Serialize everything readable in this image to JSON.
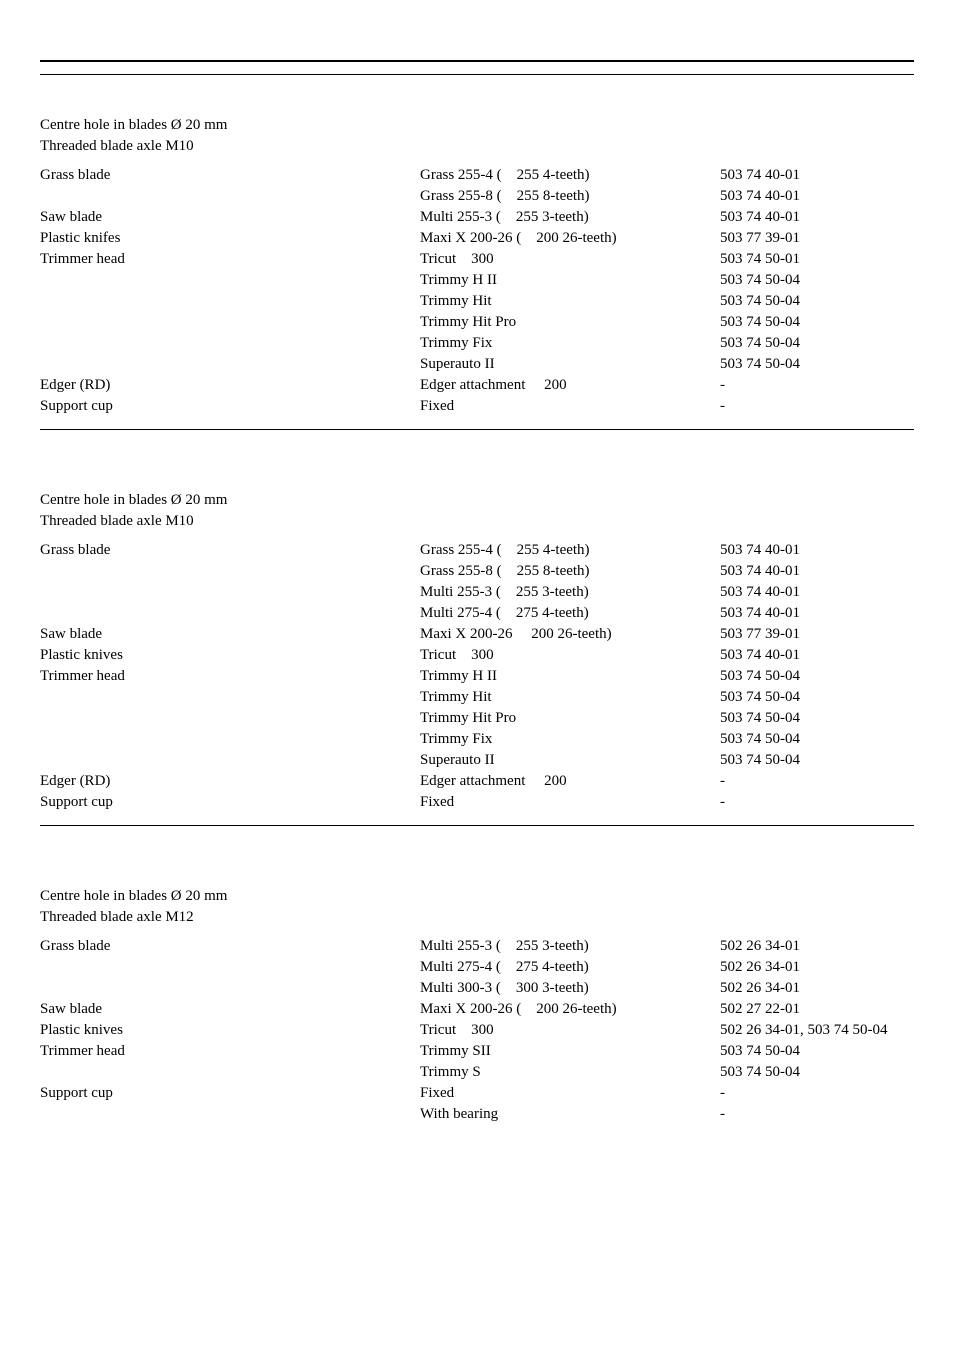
{
  "sections": [
    {
      "specs": [
        "Centre hole in blades Ø 20 mm",
        "Threaded blade axle M10"
      ],
      "rows": [
        {
          "left": "Grass blade",
          "mid": "Grass 255-4 (    255 4-teeth)",
          "right": "503 74 40-01"
        },
        {
          "left": "",
          "mid": "Grass 255-8 (    255 8-teeth)",
          "right": "503 74 40-01"
        },
        {
          "left": "Saw blade",
          "mid": "Multi 255-3 (    255 3-teeth)",
          "right": "503 74 40-01"
        },
        {
          "left": "Plastic knifes",
          "mid": "Maxi X 200-26 (    200 26-teeth)",
          "right": "503 77 39-01"
        },
        {
          "left": "Trimmer head",
          "mid": "Tricut    300",
          "right": "503 74 50-01"
        },
        {
          "left": "",
          "mid": "Trimmy H II",
          "right": "503 74 50-04"
        },
        {
          "left": "",
          "mid": "Trimmy Hit",
          "right": "503 74 50-04"
        },
        {
          "left": "",
          "mid": "Trimmy Hit Pro",
          "right": "503 74 50-04"
        },
        {
          "left": "",
          "mid": "Trimmy Fix",
          "right": "503 74 50-04"
        },
        {
          "left": "",
          "mid": "Superauto II",
          "right": "503 74 50-04"
        },
        {
          "left": "Edger (RD)",
          "mid": "Edger attachment     200",
          "right": "-"
        },
        {
          "left": "Support cup",
          "mid": "Fixed",
          "right": "-"
        }
      ]
    },
    {
      "specs": [
        "Centre hole in blades Ø 20 mm",
        "Threaded blade axle M10"
      ],
      "rows": [
        {
          "left": "Grass blade",
          "mid": "Grass 255-4 (    255 4-teeth)",
          "right": "503 74 40-01"
        },
        {
          "left": "",
          "mid": "Grass 255-8 (    255 8-teeth)",
          "right": "503 74 40-01"
        },
        {
          "left": "",
          "mid": "Multi 255-3 (    255 3-teeth)",
          "right": "503 74 40-01"
        },
        {
          "left": "",
          "mid": "Multi 275-4 (    275 4-teeth)",
          "right": "503 74 40-01"
        },
        {
          "left": "Saw blade",
          "mid": "Maxi X 200-26     200 26-teeth)",
          "right": "503 77 39-01"
        },
        {
          "left": "Plastic knives",
          "mid": "Tricut    300",
          "right": "503 74 40-01"
        },
        {
          "left": "Trimmer head",
          "mid": "Trimmy H II",
          "right": "503 74 50-04"
        },
        {
          "left": "",
          "mid": "Trimmy Hit",
          "right": "503 74 50-04"
        },
        {
          "left": "",
          "mid": "Trimmy Hit Pro",
          "right": "503 74 50-04"
        },
        {
          "left": "",
          "mid": "Trimmy Fix",
          "right": "503 74 50-04"
        },
        {
          "left": "",
          "mid": "Superauto II",
          "right": "503 74 50-04"
        },
        {
          "left": "Edger (RD)",
          "mid": "Edger attachment     200",
          "right": "-"
        },
        {
          "left": "Support cup",
          "mid": "Fixed",
          "right": "-"
        }
      ]
    },
    {
      "specs": [
        "Centre hole in blades Ø 20 mm",
        "Threaded blade axle M12"
      ],
      "rows": [
        {
          "left": "Grass blade",
          "mid": "Multi 255-3 (    255 3-teeth)",
          "right": "502 26 34-01"
        },
        {
          "left": "",
          "mid": "Multi 275-4 (    275 4-teeth)",
          "right": "502 26 34-01"
        },
        {
          "left": "",
          "mid": "Multi 300-3 (    300 3-teeth)",
          "right": "502 26 34-01"
        },
        {
          "left": "Saw blade",
          "mid": "Maxi X 200-26 (    200 26-teeth)",
          "right": "502 27 22-01"
        },
        {
          "left": "Plastic knives",
          "mid": "Tricut    300",
          "right": "502 26 34-01, 503 74 50-04"
        },
        {
          "left": "Trimmer head",
          "mid": "Trimmy SII",
          "right": "503 74 50-04"
        },
        {
          "left": "",
          "mid": "Trimmy S",
          "right": "503 74 50-04"
        },
        {
          "left": "Support cup",
          "mid": "Fixed",
          "right": "-"
        },
        {
          "left": "",
          "mid": "With bearing",
          "right": "-"
        }
      ],
      "no_rule": true
    }
  ]
}
